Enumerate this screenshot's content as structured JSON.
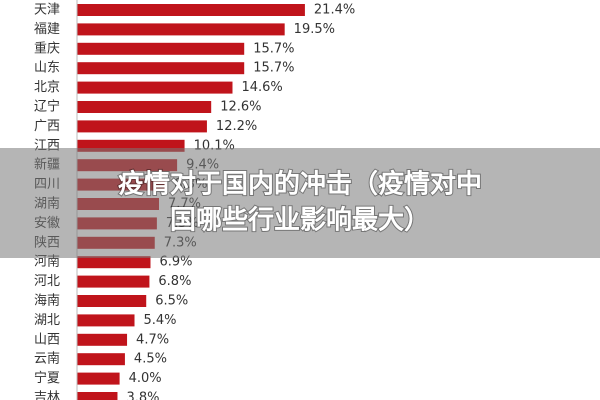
{
  "chart_data": {
    "type": "hbar",
    "categories": [
      "天津",
      "福建",
      "重庆",
      "山东",
      "北京",
      "辽宁",
      "广西",
      "江西",
      "新疆",
      "四川",
      "湖南",
      "安徽",
      "陕西",
      "河南",
      "河北",
      "海南",
      "湖北",
      "山西",
      "云南",
      "宁夏",
      "吉林"
    ],
    "values": [
      21.4,
      19.5,
      15.7,
      15.7,
      14.6,
      12.6,
      12.2,
      10.1,
      9.4,
      8.3,
      7.7,
      7.5,
      7.3,
      6.9,
      6.8,
      6.5,
      5.4,
      4.7,
      4.5,
      4.0,
      3.8
    ],
    "value_labels": [
      "21.4%",
      "19.5%",
      "15.7%",
      "15.7%",
      "14.6%",
      "12.6%",
      "12.2%",
      "10.1%",
      "9.4%",
      "8.3%",
      "7.7%",
      "7.5%",
      "7.3%",
      "6.9%",
      "6.8%",
      "6.5%",
      "5.4%",
      "4.7%",
      "4.5%",
      "4.0%",
      "3.8%"
    ],
    "color": "#c0141b"
  },
  "banner": {
    "lines": [
      "疫情对于国内的冲击（疫情对中",
      "国哪些行业影响最大）"
    ]
  }
}
